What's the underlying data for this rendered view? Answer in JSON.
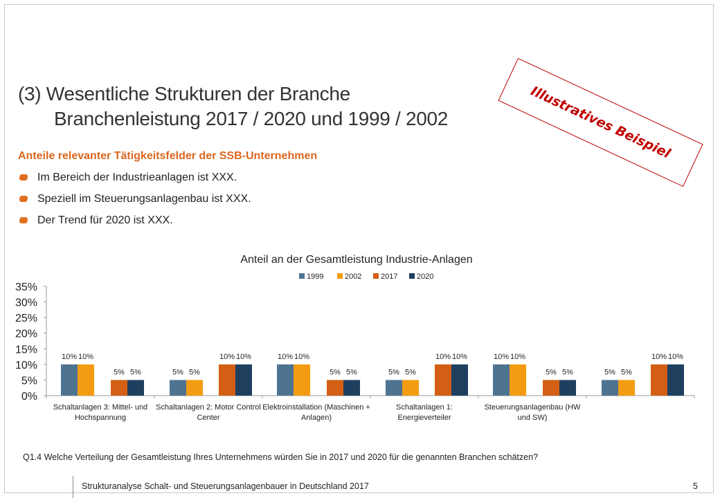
{
  "slide": {
    "title_line1": "(3)  Wesentliche Strukturen der Branche",
    "title_line2": "Branchenleistung 2017 / 2020 und 1999 / 2002",
    "subtitle": "Anteile relevanter Tätigkeitsfelder der SSB-Unternehmen",
    "bullets": [
      "Im Bereich der Industrieanlagen ist XXX.",
      "Speziell im Steuerungsanlagenbau ist XXX.",
      "Der Trend für 2020 ist XXX."
    ],
    "stamp": "Illustratives Beispiel",
    "question": "Q1.4 Welche Verteilung der Gesamtleistung Ihres Unternehmens würden Sie in 2017 und 2020 für die genannten Branchen schätzen?",
    "footer": "Strukturanalyse  Schalt- und Steuerungsanlagenbauer in Deutschland 2017",
    "page_number": "5"
  },
  "colors": {
    "accent_orange": "#d9661f",
    "stamp_red": "#c00000",
    "s1999": "#4e7390",
    "s2002": "#f39c12",
    "s2017": "#d35f14",
    "s2020": "#1f3f5f"
  },
  "chart_data": {
    "type": "bar",
    "title": "Anteil an der Gesamtleistung Industrie-Anlagen",
    "categories": [
      [
        "Schaltanlagen 3: Mittel- und",
        "Hochspannung"
      ],
      [
        "Schaltanlagen 2: Motor Control",
        "Center"
      ],
      [
        "Elektroinstallation (Maschinen +",
        "Anlagen)"
      ],
      [
        "Schaltanlagen 1:",
        "Energieverteiler"
      ],
      [
        "Steuerungsanlagenbau (HW",
        "und SW)"
      ],
      [
        "",
        ""
      ]
    ],
    "series": [
      {
        "name": "1999",
        "values": [
          10,
          5,
          10,
          5,
          10,
          5
        ]
      },
      {
        "name": "2002",
        "values": [
          10,
          5,
          10,
          5,
          10,
          5
        ]
      },
      {
        "name": "2017",
        "values": [
          5,
          10,
          5,
          10,
          5,
          10
        ]
      },
      {
        "name": "2020",
        "values": [
          5,
          10,
          5,
          10,
          5,
          10
        ]
      }
    ],
    "unit": "%",
    "ylim": [
      0,
      35
    ],
    "yticks": [
      0,
      5,
      10,
      15,
      20,
      25,
      30,
      35
    ],
    "legend_position": "top-center",
    "grid": false
  }
}
